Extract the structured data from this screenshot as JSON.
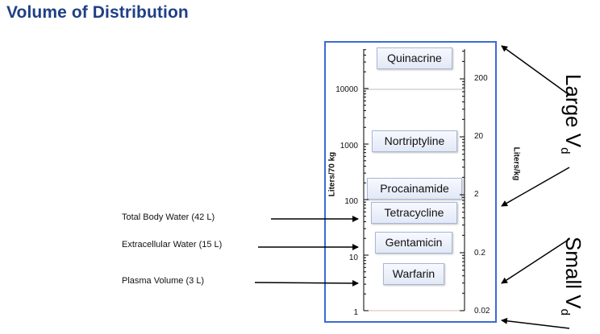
{
  "title": "Volume of Distribution",
  "axis": {
    "left_label": "Liters/70 kg",
    "right_label": "Liters/kg",
    "left_ticks": [
      "10000",
      "1000",
      "100",
      "10",
      "1"
    ],
    "right_ticks": [
      "200",
      "20",
      "2",
      "0.2",
      "0.02"
    ]
  },
  "drugs": [
    "Quinacrine",
    "Nortriptyline",
    "Procainamide",
    "Tetracycline",
    "Gentamicin",
    "Warfarin"
  ],
  "body_compartments": [
    "Total Body Water (42 L)",
    "Extracellular Water (15 L)",
    "Plasma Volume (3 L)"
  ],
  "ranges": {
    "large": {
      "text": "Large V",
      "sub": "d"
    },
    "small": {
      "text": "Small V",
      "sub": "d"
    }
  }
}
